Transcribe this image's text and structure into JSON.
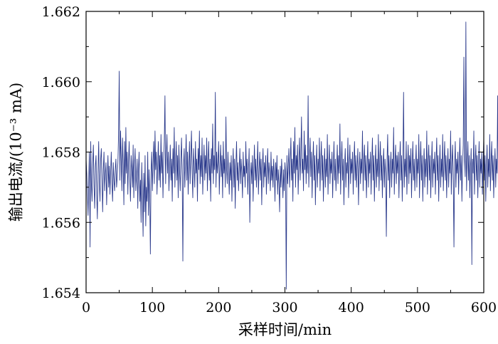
{
  "chart_data": {
    "type": "line",
    "title": "",
    "xlabel": "采样时间/min",
    "ylabel": "输出电流/(10⁻³ mA)",
    "xlim": [
      0,
      600
    ],
    "ylim": [
      1.654,
      1.662
    ],
    "x_ticks": [
      0,
      100,
      200,
      300,
      400,
      500,
      600
    ],
    "x_tick_labels": [
      "0",
      "100",
      "200",
      "300",
      "400",
      "500",
      "600"
    ],
    "y_ticks": [
      1.654,
      1.656,
      1.658,
      1.66,
      1.662
    ],
    "y_tick_labels": [
      "1.654",
      "1.656",
      "1.658",
      "1.660",
      "1.662"
    ],
    "grid": false,
    "series": [
      {
        "color": "#2b3a8c",
        "x_start": 0,
        "x_step": 1,
        "values": [
          1.6578,
          1.6574,
          1.6568,
          1.6562,
          1.6572,
          1.658,
          1.6553,
          1.6583,
          1.6571,
          1.6566,
          1.6577,
          1.6582,
          1.657,
          1.6564,
          1.6576,
          1.6579,
          1.6568,
          1.6561,
          1.6574,
          1.6583,
          1.6571,
          1.6566,
          1.6578,
          1.6581,
          1.6572,
          1.6563,
          1.6575,
          1.658,
          1.6569,
          1.6574,
          1.6577,
          1.6565,
          1.6573,
          1.6579,
          1.657,
          1.6576,
          1.6568,
          1.6574,
          1.658,
          1.6571,
          1.6566,
          1.6577,
          1.6572,
          1.6569,
          1.6575,
          1.6578,
          1.657,
          1.6573,
          1.6577,
          1.6585,
          1.6603,
          1.6572,
          1.6586,
          1.6578,
          1.6569,
          1.6584,
          1.6576,
          1.6565,
          1.6583,
          1.6571,
          1.6587,
          1.6574,
          1.658,
          1.6568,
          1.6577,
          1.6583,
          1.6572,
          1.6566,
          1.6579,
          1.6575,
          1.657,
          1.6582,
          1.6567,
          1.6576,
          1.6581,
          1.6569,
          1.6573,
          1.6578,
          1.6564,
          1.6575,
          1.658,
          1.6566,
          1.6572,
          1.656,
          1.6577,
          1.6568,
          1.6556,
          1.6574,
          1.6563,
          1.6579,
          1.6559,
          1.657,
          1.6566,
          1.658,
          1.6562,
          1.6575,
          1.6568,
          1.6551,
          1.6574,
          1.658,
          1.6569,
          1.6577,
          1.6583,
          1.6571,
          1.6586,
          1.6575,
          1.658,
          1.6568,
          1.6576,
          1.6583,
          1.6572,
          1.6579,
          1.657,
          1.6585,
          1.6574,
          1.658,
          1.6567,
          1.6577,
          1.6583,
          1.6596,
          1.6571,
          1.6579,
          1.6585,
          1.6574,
          1.658,
          1.6569,
          1.6576,
          1.6582,
          1.6572,
          1.6578,
          1.6566,
          1.6581,
          1.6574,
          1.6587,
          1.657,
          1.6577,
          1.6583,
          1.6572,
          1.6579,
          1.6567,
          1.6582,
          1.6575,
          1.6569,
          1.6578,
          1.6584,
          1.6573,
          1.6549,
          1.6576,
          1.6581,
          1.657,
          1.6577,
          1.6585,
          1.6572,
          1.658,
          1.6568,
          1.6576,
          1.6583,
          1.6571,
          1.6579,
          1.6586,
          1.6574,
          1.6567,
          1.6581,
          1.6576,
          1.657,
          1.6583,
          1.6574,
          1.6578,
          1.6566,
          1.6581,
          1.6575,
          1.6586,
          1.6571,
          1.6579,
          1.6573,
          1.6584,
          1.6568,
          1.6576,
          1.6582,
          1.6572,
          1.6579,
          1.6574,
          1.6584,
          1.6569,
          1.6577,
          1.6583,
          1.6572,
          1.6578,
          1.6566,
          1.6581,
          1.6574,
          1.6588,
          1.6571,
          1.6579,
          1.6575,
          1.6597,
          1.657,
          1.658,
          1.6574,
          1.6577,
          1.6583,
          1.6568,
          1.6576,
          1.6582,
          1.6573,
          1.6579,
          1.6567,
          1.6583,
          1.6574,
          1.6578,
          1.657,
          1.659,
          1.6575,
          1.6571,
          1.658,
          1.6574,
          1.6568,
          1.6577,
          1.6572,
          1.6579,
          1.6566,
          1.6575,
          1.6581,
          1.657,
          1.6578,
          1.6564,
          1.6576,
          1.6583,
          1.6572,
          1.6577,
          1.6569,
          1.6575,
          1.6581,
          1.6571,
          1.6578,
          1.6574,
          1.6567,
          1.658,
          1.6573,
          1.6576,
          1.657,
          1.6583,
          1.6574,
          1.6578,
          1.6568,
          1.6575,
          1.6581,
          1.656,
          1.6573,
          1.6577,
          1.6571,
          1.6579,
          1.6566,
          1.6575,
          1.6582,
          1.6572,
          1.6578,
          1.657,
          1.6576,
          1.6583,
          1.6568,
          1.6575,
          1.658,
          1.6572,
          1.6578,
          1.6565,
          1.6576,
          1.6581,
          1.657,
          1.6577,
          1.6573,
          1.6579,
          1.6568,
          1.6575,
          1.6581,
          1.6571,
          1.6577,
          1.6574,
          1.6569,
          1.658,
          1.6572,
          1.6576,
          1.657,
          1.6578,
          1.6574,
          1.6566,
          1.6577,
          1.6572,
          1.6579,
          1.6568,
          1.6575,
          1.6571,
          1.6563,
          1.6576,
          1.657,
          1.6578,
          1.6573,
          1.6567,
          1.6575,
          1.6569,
          1.6577,
          1.6574,
          1.6541,
          1.6579,
          1.6571,
          1.6576,
          1.6581,
          1.657,
          1.6577,
          1.6584,
          1.6572,
          1.6578,
          1.6566,
          1.6583,
          1.6574,
          1.6587,
          1.657,
          1.6579,
          1.6575,
          1.6582,
          1.6568,
          1.6577,
          1.6584,
          1.6572,
          1.6579,
          1.659,
          1.6574,
          1.6578,
          1.6569,
          1.6586,
          1.6575,
          1.6582,
          1.6571,
          1.6579,
          1.6574,
          1.6596,
          1.657,
          1.6578,
          1.6584,
          1.6573,
          1.658,
          1.6567,
          1.6577,
          1.6583,
          1.6572,
          1.6579,
          1.6565,
          1.6576,
          1.6582,
          1.657,
          1.6578,
          1.6574,
          1.6584,
          1.6569,
          1.6577,
          1.6583,
          1.6572,
          1.6579,
          1.6566,
          1.6576,
          1.6581,
          1.657,
          1.6578,
          1.6573,
          1.6585,
          1.6568,
          1.6576,
          1.6582,
          1.6571,
          1.6578,
          1.6574,
          1.658,
          1.6567,
          1.6576,
          1.6583,
          1.6572,
          1.6578,
          1.6569,
          1.6575,
          1.6582,
          1.6571,
          1.6579,
          1.6574,
          1.6588,
          1.6568,
          1.6577,
          1.6583,
          1.6572,
          1.6578,
          1.6565,
          1.6576,
          1.6581,
          1.657,
          1.6577,
          1.6574,
          1.6584,
          1.6567,
          1.6576,
          1.6582,
          1.6571,
          1.6578,
          1.6574,
          1.658,
          1.6568,
          1.6577,
          1.6583,
          1.6572,
          1.6579,
          1.657,
          1.6576,
          1.6581,
          1.6565,
          1.6575,
          1.658,
          1.6571,
          1.6578,
          1.6574,
          1.6586,
          1.6569,
          1.6577,
          1.6582,
          1.6572,
          1.6579,
          1.6567,
          1.6576,
          1.6583,
          1.657,
          1.6578,
          1.6574,
          1.658,
          1.6568,
          1.6577,
          1.6584,
          1.6572,
          1.6579,
          1.6566,
          1.6576,
          1.6582,
          1.657,
          1.6578,
          1.6573,
          1.6585,
          1.6569,
          1.6577,
          1.6583,
          1.6572,
          1.6579,
          1.6567,
          1.6576,
          1.6581,
          1.657,
          1.6578,
          1.6574,
          1.6556,
          1.6577,
          1.6585,
          1.6572,
          1.6579,
          1.6567,
          1.6576,
          1.658,
          1.657,
          1.6578,
          1.6574,
          1.6587,
          1.6568,
          1.6577,
          1.6582,
          1.6571,
          1.6579,
          1.6574,
          1.658,
          1.6567,
          1.6577,
          1.6583,
          1.6572,
          1.6579,
          1.6566,
          1.6576,
          1.6597,
          1.657,
          1.6578,
          1.6573,
          1.6583,
          1.6568,
          1.6576,
          1.6582,
          1.6571,
          1.6579,
          1.6574,
          1.6581,
          1.6567,
          1.6576,
          1.6583,
          1.6572,
          1.6578,
          1.6569,
          1.6576,
          1.6582,
          1.657,
          1.6578,
          1.6574,
          1.6585,
          1.6567,
          1.6577,
          1.6583,
          1.6572,
          1.6579,
          1.6566,
          1.6576,
          1.6581,
          1.657,
          1.6578,
          1.6573,
          1.6586,
          1.6568,
          1.6577,
          1.6582,
          1.6572,
          1.6579,
          1.6567,
          1.6576,
          1.6583,
          1.657,
          1.6578,
          1.6574,
          1.658,
          1.6568,
          1.6577,
          1.6584,
          1.6572,
          1.6579,
          1.6566,
          1.6576,
          1.6582,
          1.657,
          1.6578,
          1.6573,
          1.6585,
          1.6569,
          1.6577,
          1.6583,
          1.6572,
          1.6579,
          1.6567,
          1.6576,
          1.6581,
          1.657,
          1.6578,
          1.6574,
          1.6586,
          1.6568,
          1.6577,
          1.6582,
          1.6572,
          1.6553,
          1.6576,
          1.6583,
          1.657,
          1.6578,
          1.6574,
          1.658,
          1.6568,
          1.6577,
          1.6584,
          1.6572,
          1.6579,
          1.6566,
          1.6576,
          1.6582,
          1.6607,
          1.6578,
          1.6573,
          1.6617,
          1.6569,
          1.6577,
          1.6583,
          1.6572,
          1.6579,
          1.6567,
          1.6576,
          1.6581,
          1.6548,
          1.6578,
          1.6574,
          1.6586,
          1.6568,
          1.6577,
          1.6582,
          1.6572,
          1.6579,
          1.6567,
          1.6576,
          1.6583,
          1.657,
          1.6578,
          1.6574,
          1.658,
          1.6568,
          1.6577,
          1.6584,
          1.6572,
          1.6579,
          1.6566,
          1.6576,
          1.6582,
          1.657,
          1.6578,
          1.6573,
          1.6585,
          1.6569,
          1.6577,
          1.6583,
          1.6572,
          1.6579,
          1.6567,
          1.6576,
          1.6581,
          1.657,
          1.6578,
          1.6574,
          1.6596,
          1.6568,
          1.6577,
          1.6582,
          1.6572,
          1.6579,
          1.6567,
          1.6576,
          1.6583,
          1.657,
          1.6578,
          1.6574,
          1.658,
          1.6568,
          1.6577,
          1.6584,
          1.6572,
          1.6579,
          1.6566,
          1.6576,
          1.6582,
          1.657,
          1.6578,
          1.6573,
          1.6585,
          1.6569,
          1.6577,
          1.6583,
          1.6572,
          1.6579,
          1.6567,
          1.6576,
          1.6581,
          1.657,
          1.6578
        ]
      }
    ]
  }
}
